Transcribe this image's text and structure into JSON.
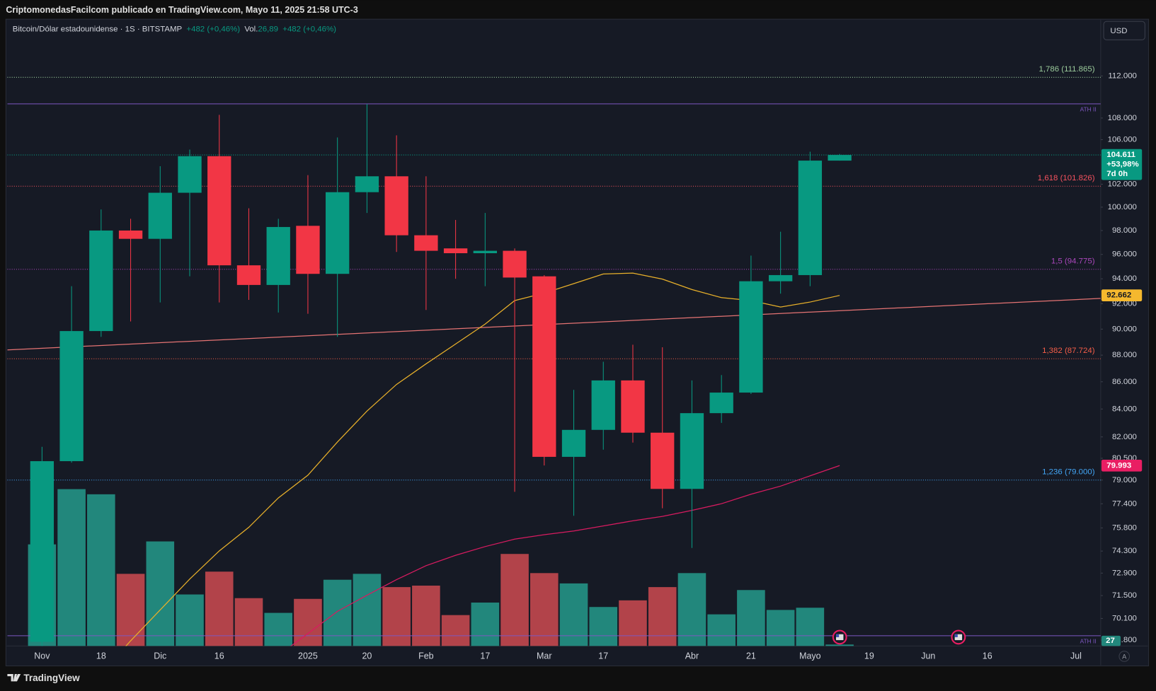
{
  "header": {
    "publisher": "CriptomonedasFacilcom publicado en TradingView.com, Mayo 11, 2025 21:58 UTC-3",
    "currency_button": "USD",
    "brand": "TradingView",
    "auto_button": "A"
  },
  "chart_data": {
    "type": "candlestick",
    "legend": {
      "symbol": "Bitcoin/Dólar estadounidense · 1S · BITSTAMP",
      "change": "+482 (+0,46%)",
      "volume_label": "Vol.",
      "volume": "26,89",
      "volume_change": "+482 (+0,46%)"
    },
    "categories": [
      "Nov",
      null,
      "18",
      null,
      "Dic",
      null,
      "16",
      null,
      null,
      "2025",
      null,
      "20",
      null,
      "Feb",
      null,
      "17",
      null,
      "Mar",
      null,
      "17",
      null,
      null,
      "Abr",
      null,
      "21",
      null,
      "Mayo",
      null,
      "19",
      null,
      "Jun",
      null,
      "16",
      null,
      null,
      "Jul"
    ],
    "open": [
      68700,
      80300,
      89850,
      98000,
      97300,
      101250,
      104500,
      95100,
      93500,
      98400,
      94400,
      101300,
      102700,
      97600,
      96500,
      96100,
      96300,
      94200,
      80600,
      82500,
      86100,
      82300,
      78400,
      83700,
      85200,
      93800,
      94300,
      104100,
      null,
      null,
      null,
      null,
      null,
      null,
      null,
      null
    ],
    "high": [
      81300,
      93400,
      99800,
      99000,
      103600,
      105100,
      108300,
      99900,
      99000,
      102800,
      106200,
      109300,
      106400,
      102700,
      98900,
      99500,
      96500,
      94300,
      85400,
      87500,
      88800,
      88600,
      86100,
      86500,
      95900,
      97900,
      104900,
      104700,
      null,
      null,
      null,
      null,
      null,
      null,
      null,
      null
    ],
    "low": [
      66800,
      80200,
      89400,
      90600,
      92100,
      94200,
      92100,
      92300,
      91300,
      91200,
      89400,
      99500,
      96200,
      91500,
      94000,
      93400,
      78200,
      80000,
      76600,
      81100,
      81600,
      77100,
      74500,
      83000,
      85100,
      92800,
      93400,
      104100,
      null,
      null,
      null,
      null,
      null,
      null,
      null,
      null
    ],
    "close": [
      80300,
      89850,
      98000,
      97300,
      101250,
      104500,
      95100,
      93500,
      98300,
      94400,
      101300,
      102700,
      97600,
      96300,
      96100,
      96300,
      94100,
      80600,
      82500,
      86100,
      82300,
      78400,
      83700,
      85200,
      93800,
      94300,
      104100,
      104611,
      null,
      null,
      null,
      null,
      null,
      null,
      null,
      null
    ],
    "up_color": "#089981",
    "down_color": "#f23645",
    "volume": [
      138,
      213,
      206,
      98,
      142,
      70,
      101,
      65,
      45,
      64,
      90,
      98,
      80,
      82,
      42,
      59,
      125,
      99,
      85,
      53,
      62,
      80,
      99,
      43,
      76,
      49,
      52,
      2,
      null,
      null,
      null,
      null,
      null,
      null,
      null,
      null
    ],
    "volume_ylim": [
      0,
      850
    ],
    "volume_up_color": "#22877c",
    "volume_down_color": "#b2434a",
    "volume_tag": "27",
    "lines": [
      {
        "color": "#e8b02a",
        "values": [
          null,
          null,
          66820,
          68760,
          70620,
          72530,
          74310,
          75840,
          77790,
          79330,
          81640,
          83850,
          85800,
          87340,
          88850,
          90390,
          92250,
          92840,
          93610,
          94390,
          94460,
          93970,
          93130,
          92480,
          92250,
          91730,
          92130,
          92662,
          null,
          null,
          null,
          null,
          null,
          null,
          null,
          null
        ]
      },
      {
        "color": "#d81b60",
        "values": [
          null,
          null,
          null,
          null,
          null,
          null,
          null,
          null,
          67900,
          69190,
          70530,
          71520,
          72490,
          73370,
          74030,
          74590,
          75070,
          75360,
          75600,
          75930,
          76270,
          76560,
          76960,
          77400,
          78040,
          78590,
          79290,
          79993,
          null,
          null,
          null,
          null,
          null,
          null,
          null,
          null
        ]
      }
    ],
    "trend_line": {
      "color": "#e57373",
      "values": [
        88400,
        92420
      ]
    },
    "levels": [
      {
        "label": "1,786 (111.865)",
        "value": 111865,
        "color": "#9ccc9c",
        "style": "dotted"
      },
      {
        "label": "ATH II",
        "value": 109330,
        "color": "#7e57c2",
        "style": "solid"
      },
      {
        "label": "1,618 (101.826)",
        "value": 101826,
        "color": "#f7525f",
        "style": "dotted"
      },
      {
        "label": "1,5 (94.775)",
        "value": 94775,
        "color": "#ab47bc",
        "style": "dotted"
      },
      {
        "label": "1,382 (87.724)",
        "value": 87724,
        "color": "#f45d48",
        "style": "dotted"
      },
      {
        "label": "1,236 (79.000)",
        "value": 79000,
        "color": "#42a5f5",
        "style": "dotted"
      },
      {
        "label": "ATH II",
        "value": 69060,
        "color": "#7e57c2",
        "style": "solid"
      }
    ],
    "price_tags": [
      {
        "value": 104611,
        "label": "104.611",
        "lines": [
          "+53,98%",
          "7d 0h"
        ],
        "color": "#089981",
        "text_color": "#ffffff"
      },
      {
        "value": 92662,
        "label": "92.662",
        "color": "#f5b82e",
        "text_color": "#131722"
      },
      {
        "value": 79993,
        "label": "79.993",
        "color": "#e91e63",
        "text_color": "#ffffff"
      }
    ],
    "log_scale": true,
    "grid": false,
    "ylim": [
      68450,
      117550
    ],
    "yticks": [
      {
        "value": 112000,
        "label": "112.000"
      },
      {
        "value": 108000,
        "label": "108.000"
      },
      {
        "value": 106000,
        "label": "106.000"
      },
      {
        "value": 102000,
        "label": "102.000"
      },
      {
        "value": 100000,
        "label": "100.000"
      },
      {
        "value": 98000,
        "label": "98.000"
      },
      {
        "value": 96000,
        "label": "96.000"
      },
      {
        "value": 94000,
        "label": "94.000"
      },
      {
        "value": 92000,
        "label": "92.000"
      },
      {
        "value": 90000,
        "label": "90.000"
      },
      {
        "value": 88000,
        "label": "88.000"
      },
      {
        "value": 86000,
        "label": "86.000"
      },
      {
        "value": 84000,
        "label": "84.000"
      },
      {
        "value": 82000,
        "label": "82.000"
      },
      {
        "value": 80500,
        "label": "80.500"
      },
      {
        "value": 79000,
        "label": "79.000"
      },
      {
        "value": 77400,
        "label": "77.400"
      },
      {
        "value": 75800,
        "label": "75.800"
      },
      {
        "value": 74300,
        "label": "74.300"
      },
      {
        "value": 72900,
        "label": "72.900"
      },
      {
        "value": 71500,
        "label": "71.500"
      },
      {
        "value": 70100,
        "label": "70.100"
      },
      {
        "value": 68800,
        "label": "68.800"
      }
    ]
  }
}
